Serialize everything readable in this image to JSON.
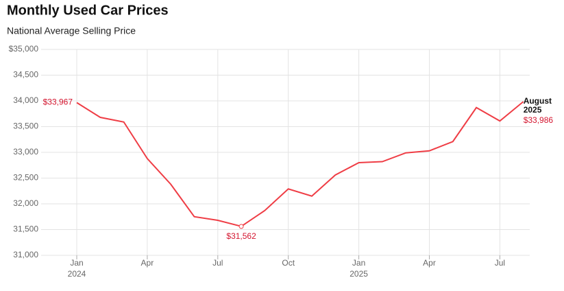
{
  "chart_data": {
    "type": "line",
    "title": "Monthly Used Car Prices",
    "subtitle": "National Average Selling Price",
    "categories": [
      "Jan",
      null,
      null,
      "Apr",
      null,
      null,
      "Jul",
      null,
      null,
      "Oct",
      null,
      null,
      "Jan",
      null,
      null,
      "Apr",
      null,
      null,
      "Jul",
      null
    ],
    "year_labels": [
      "2024",
      null,
      null,
      null,
      null,
      null,
      null,
      null,
      null,
      null,
      null,
      null,
      "2025",
      null,
      null,
      null,
      null,
      null,
      null,
      null
    ],
    "series": [
      {
        "name": "Average Selling Price",
        "color": "#ef3d45",
        "values": [
          33967,
          33680,
          33590,
          32880,
          32380,
          31750,
          31680,
          31562,
          31870,
          32290,
          32150,
          32560,
          32800,
          32820,
          32990,
          33030,
          33210,
          33870,
          33610,
          33986
        ],
        "value_labels": [
          "$33,967",
          null,
          null,
          null,
          null,
          null,
          null,
          "$31,562",
          null,
          null,
          null,
          null,
          null,
          null,
          null,
          null,
          null,
          null,
          null,
          "$33,986"
        ]
      }
    ],
    "end_label": [
      "August",
      "2025"
    ],
    "ylim": [
      31000,
      35000
    ],
    "yticks": [
      {
        "value": 31000,
        "label": "31,000"
      },
      {
        "value": 31500,
        "label": "31,500"
      },
      {
        "value": 32000,
        "label": "32,000"
      },
      {
        "value": 32500,
        "label": "32,500"
      },
      {
        "value": 33000,
        "label": "33,000"
      },
      {
        "value": 33500,
        "label": "33,500"
      },
      {
        "value": 34000,
        "label": "34,000"
      },
      {
        "value": 34500,
        "label": "34,500"
      },
      {
        "value": 35000,
        "label": "$35,000"
      }
    ],
    "grid": true
  }
}
